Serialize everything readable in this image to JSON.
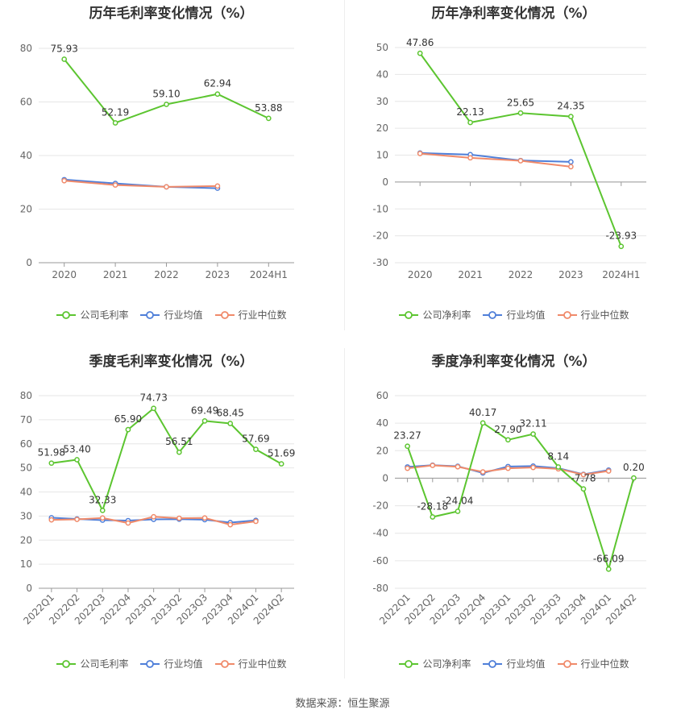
{
  "colors": {
    "company": "#5cc530",
    "avg": "#4f7fd9",
    "median": "#f08a6a",
    "grid": "#e6e6e6",
    "axis": "#999999",
    "text": "#666666"
  },
  "legend": {
    "avg": "行业均值",
    "median": "行业中位数"
  },
  "source": "数据来源：恒生聚源",
  "chart_data": [
    {
      "type": "line",
      "title": "历年毛利率变化情况（%）",
      "categories": [
        "2020",
        "2021",
        "2022",
        "2023",
        "2024H1"
      ],
      "ylim": [
        0,
        80
      ],
      "yticks": [
        0,
        20,
        40,
        60,
        80
      ],
      "series": [
        {
          "name": "公司毛利率",
          "values": [
            75.93,
            52.19,
            59.1,
            62.94,
            53.88
          ],
          "labels": [
            "75.93",
            "52.19",
            "59.10",
            "62.94",
            "53.88"
          ]
        },
        {
          "name": "行业均值",
          "values": [
            31.0,
            29.6,
            28.3,
            27.8,
            null
          ]
        },
        {
          "name": "行业中位数",
          "values": [
            30.6,
            29.0,
            28.3,
            28.6,
            null
          ]
        }
      ]
    },
    {
      "type": "line",
      "title": "历年净利率变化情况（%）",
      "categories": [
        "2020",
        "2021",
        "2022",
        "2023",
        "2024H1"
      ],
      "ylim": [
        -30,
        50
      ],
      "yticks": [
        -30,
        -20,
        -10,
        0,
        10,
        20,
        30,
        40,
        50
      ],
      "series": [
        {
          "name": "公司净利率",
          "values": [
            47.86,
            22.13,
            25.65,
            24.35,
            -23.93
          ],
          "labels": [
            "47.86",
            "22.13",
            "25.65",
            "24.35",
            "-23.93"
          ]
        },
        {
          "name": "行业均值",
          "values": [
            10.8,
            10.2,
            8.0,
            7.5,
            null
          ]
        },
        {
          "name": "行业中位数",
          "values": [
            10.6,
            9.0,
            7.9,
            5.7,
            null
          ]
        }
      ]
    },
    {
      "type": "line",
      "title": "季度毛利率变化情况（%）",
      "categories": [
        "2022Q1",
        "2022Q2",
        "2022Q3",
        "2022Q4",
        "2023Q1",
        "2023Q2",
        "2023Q3",
        "2023Q4",
        "2024Q1",
        "2024Q2"
      ],
      "ylim": [
        0,
        80
      ],
      "yticks": [
        0,
        10,
        20,
        30,
        40,
        50,
        60,
        70,
        80
      ],
      "series": [
        {
          "name": "公司毛利率",
          "values": [
            51.98,
            53.4,
            32.33,
            65.9,
            74.73,
            56.51,
            69.49,
            68.45,
            57.69,
            51.69
          ],
          "labels": [
            "51.98",
            "53.40",
            "32.33",
            "65.90",
            "74.73",
            "56.51",
            "69.49",
            "68.45",
            "57.69",
            "51.69"
          ]
        },
        {
          "name": "行业均值",
          "values": [
            29.3,
            28.8,
            28.3,
            28.1,
            28.6,
            28.7,
            28.5,
            27.3,
            28.2,
            null
          ]
        },
        {
          "name": "行业中位数",
          "values": [
            28.4,
            28.6,
            29.2,
            27.1,
            29.7,
            29.1,
            29.2,
            26.4,
            27.8,
            null
          ]
        }
      ]
    },
    {
      "type": "line",
      "title": "季度净利率变化情况（%）",
      "categories": [
        "2022Q1",
        "2022Q2",
        "2022Q3",
        "2022Q4",
        "2023Q1",
        "2023Q2",
        "2023Q3",
        "2023Q4",
        "2024Q1",
        "2024Q2"
      ],
      "ylim": [
        -80,
        60
      ],
      "yticks": [
        -80,
        -60,
        -40,
        -20,
        0,
        20,
        40,
        60
      ],
      "series": [
        {
          "name": "公司净利率",
          "values": [
            23.27,
            -28.18,
            -24.04,
            40.17,
            27.9,
            32.11,
            8.14,
            -7.78,
            -66.09,
            0.2
          ],
          "labels": [
            "23.27",
            "-28.18",
            "-24.04",
            "40.17",
            "27.90",
            "32.11",
            "8.14",
            "-7.78",
            "-66.09",
            "0.20"
          ]
        },
        {
          "name": "行业均值",
          "values": [
            8.2,
            9.5,
            8.7,
            3.8,
            8.5,
            8.8,
            7.3,
            2.8,
            5.9,
            null
          ]
        },
        {
          "name": "行业中位数",
          "values": [
            7.2,
            9.3,
            8.3,
            4.6,
            7.2,
            7.8,
            6.8,
            2.6,
            5.2,
            null
          ]
        }
      ]
    }
  ]
}
